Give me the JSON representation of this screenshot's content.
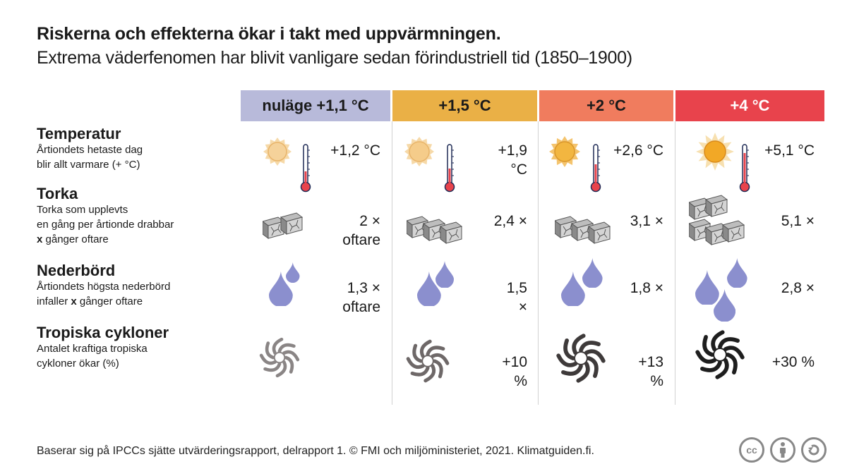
{
  "title": "Riskerna och effekterna ökar i takt med uppvärmningen.",
  "subtitle": "Extrema väderfenomen har blivit vanligare sedan förindustriell tid (1850–1900)",
  "columns": [
    {
      "label": "nuläge +1,1 °C",
      "color": "#b8bada",
      "text_color": "#1a1a1a"
    },
    {
      "label": "+1,5 °C",
      "color": "#eab046",
      "text_color": "#1a1a1a"
    },
    {
      "label": "+2 °C",
      "color": "#f07c5e",
      "text_color": "#1a1a1a"
    },
    {
      "label": "+4 °C",
      "color": "#e8434c",
      "text_color": "#ffffff"
    }
  ],
  "rows": [
    {
      "title": "Temperatur",
      "desc_lines": [
        "Årtiondets hetaste dag",
        "blir allt varmare (+ °C)"
      ],
      "values": [
        "+1,2 °C",
        "+1,9 °C",
        "+2,6 °C",
        "+5,1 °C"
      ]
    },
    {
      "title": "Torka",
      "desc_lines": [
        "Torka som upplevts",
        "en gång per årtionde drabbar",
        "x gånger oftare"
      ],
      "values": [
        "2 ×\noftare",
        "2,4 ×",
        "3,1 ×",
        "5,1 ×"
      ]
    },
    {
      "title": "Nederbörd",
      "desc_lines": [
        "Årtiondets högsta nederbörd",
        "infaller x gånger oftare"
      ],
      "values": [
        "1,3 ×\noftare",
        "1,5 ×",
        "1,8 ×",
        "2,8 ×"
      ]
    },
    {
      "title": "Tropiska cykloner",
      "desc_lines": [
        "Antalet kraftiga tropiska",
        "cykloner ökar (%)"
      ],
      "values": [
        "",
        "+10 %",
        "+13 %",
        "+30 %"
      ]
    }
  ],
  "icons": {
    "temperature": "sun-and-thermometer-icon",
    "drought": "cracked-soil-icon",
    "precipitation": "raindrop-icon",
    "cyclone": "cyclone-icon"
  },
  "footer": "Baserar sig på IPCCs sjätte utvärderingsrapport, delrapport 1. © FMI och miljöministeriet, 2021. Klimatguiden.fi.",
  "license_badges": [
    "cc",
    "by",
    "sa"
  ],
  "license_text": "cc"
}
